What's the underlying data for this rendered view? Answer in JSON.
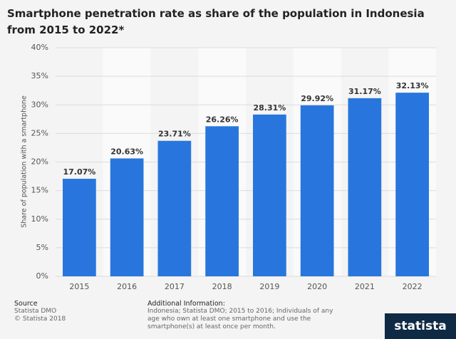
{
  "chart_data": {
    "type": "bar",
    "title": "Smartphone penetration rate as share of the population in Indonesia from 2015 to 2022*",
    "y_label": "Share of population with a smartphone",
    "categories": [
      "2015",
      "2016",
      "2017",
      "2018",
      "2019",
      "2020",
      "2021",
      "2022"
    ],
    "values": [
      17.07,
      20.63,
      23.71,
      26.26,
      28.31,
      29.92,
      31.17,
      32.13
    ],
    "value_labels": [
      "17.07%",
      "20.63%",
      "23.71%",
      "26.26%",
      "28.31%",
      "29.92%",
      "31.17%",
      "32.13%"
    ],
    "color": "#2876dd",
    "ylim": [
      0,
      40
    ],
    "yticks": [
      {
        "value": 0,
        "label": "0%"
      },
      {
        "value": 5,
        "label": "5%"
      },
      {
        "value": 10,
        "label": "10%"
      },
      {
        "value": 15,
        "label": "15%"
      },
      {
        "value": 20,
        "label": "20%"
      },
      {
        "value": 25,
        "label": "25%"
      },
      {
        "value": 30,
        "label": "30%"
      },
      {
        "value": 35,
        "label": "35%"
      },
      {
        "value": 40,
        "label": "40%"
      }
    ],
    "grid": true
  },
  "footer": {
    "source_heading": "Source",
    "source": "Statista DMO",
    "copyright": "© Statista 2018",
    "info_heading": "Additional Information:",
    "info": "Indonesia; Statista DMO; 2015 to 2016; Individuals of any age who own at least one smartphone and use the smartphone(s) at least once per month.",
    "logo": "statista"
  }
}
